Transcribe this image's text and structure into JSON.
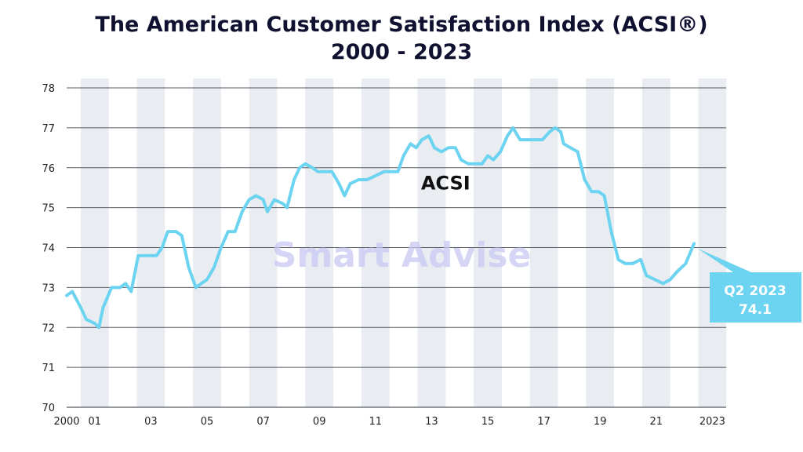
{
  "chart_data": {
    "type": "line",
    "title": "The American Customer Satisfaction Index (ACSI®)",
    "subtitle": "2000 - 2023",
    "series": [
      {
        "name": "ACSI",
        "color": "#6cd3f0",
        "points": [
          [
            2000.0,
            72.8
          ],
          [
            2000.2,
            72.9
          ],
          [
            2000.5,
            72.5
          ],
          [
            2000.7,
            72.2
          ],
          [
            2001.0,
            72.1
          ],
          [
            2001.15,
            72.0
          ],
          [
            2001.3,
            72.5
          ],
          [
            2001.6,
            73.0
          ],
          [
            2001.9,
            73.0
          ],
          [
            2002.1,
            73.1
          ],
          [
            2002.3,
            72.9
          ],
          [
            2002.55,
            73.8
          ],
          [
            2002.9,
            73.8
          ],
          [
            2003.2,
            73.8
          ],
          [
            2003.4,
            74.0
          ],
          [
            2003.6,
            74.4
          ],
          [
            2003.9,
            74.4
          ],
          [
            2004.1,
            74.3
          ],
          [
            2004.35,
            73.5
          ],
          [
            2004.6,
            73.0
          ],
          [
            2004.8,
            73.1
          ],
          [
            2005.0,
            73.2
          ],
          [
            2005.25,
            73.5
          ],
          [
            2005.5,
            74.0
          ],
          [
            2005.75,
            74.4
          ],
          [
            2006.0,
            74.4
          ],
          [
            2006.25,
            74.9
          ],
          [
            2006.5,
            75.2
          ],
          [
            2006.75,
            75.3
          ],
          [
            2007.0,
            75.2
          ],
          [
            2007.15,
            74.9
          ],
          [
            2007.4,
            75.2
          ],
          [
            2007.7,
            75.1
          ],
          [
            2007.85,
            75.0
          ],
          [
            2008.1,
            75.7
          ],
          [
            2008.3,
            76.0
          ],
          [
            2008.5,
            76.1
          ],
          [
            2008.75,
            76.0
          ],
          [
            2008.95,
            75.9
          ],
          [
            2009.2,
            75.9
          ],
          [
            2009.45,
            75.9
          ],
          [
            2009.7,
            75.6
          ],
          [
            2009.9,
            75.3
          ],
          [
            2010.1,
            75.6
          ],
          [
            2010.4,
            75.7
          ],
          [
            2010.7,
            75.7
          ],
          [
            2011.0,
            75.8
          ],
          [
            2011.3,
            75.9
          ],
          [
            2011.55,
            75.9
          ],
          [
            2011.8,
            75.9
          ],
          [
            2012.0,
            76.3
          ],
          [
            2012.25,
            76.6
          ],
          [
            2012.45,
            76.5
          ],
          [
            2012.65,
            76.7
          ],
          [
            2012.9,
            76.8
          ],
          [
            2013.1,
            76.5
          ],
          [
            2013.35,
            76.4
          ],
          [
            2013.6,
            76.5
          ],
          [
            2013.85,
            76.5
          ],
          [
            2014.05,
            76.2
          ],
          [
            2014.3,
            76.1
          ],
          [
            2014.55,
            76.1
          ],
          [
            2014.8,
            76.1
          ],
          [
            2015.0,
            76.3
          ],
          [
            2015.2,
            76.2
          ],
          [
            2015.45,
            76.4
          ],
          [
            2015.7,
            76.8
          ],
          [
            2015.9,
            77.0
          ],
          [
            2016.15,
            76.7
          ],
          [
            2016.4,
            76.7
          ],
          [
            2016.7,
            76.7
          ],
          [
            2016.95,
            76.7
          ],
          [
            2017.2,
            76.9
          ],
          [
            2017.4,
            77.0
          ],
          [
            2017.6,
            76.9
          ],
          [
            2017.7,
            76.6
          ],
          [
            2017.95,
            76.5
          ],
          [
            2018.2,
            76.4
          ],
          [
            2018.45,
            75.7
          ],
          [
            2018.7,
            75.4
          ],
          [
            2018.95,
            75.4
          ],
          [
            2019.15,
            75.3
          ],
          [
            2019.4,
            74.4
          ],
          [
            2019.65,
            73.7
          ],
          [
            2019.9,
            73.6
          ],
          [
            2020.15,
            73.6
          ],
          [
            2020.45,
            73.7
          ],
          [
            2020.65,
            73.3
          ],
          [
            2020.95,
            73.2
          ],
          [
            2021.25,
            73.1
          ],
          [
            2021.5,
            73.2
          ],
          [
            2021.75,
            73.4
          ],
          [
            2022.05,
            73.6
          ],
          [
            2022.35,
            74.1
          ]
        ]
      }
    ],
    "x_tick_labels": [
      {
        "x": 2000,
        "label": "2000"
      },
      {
        "x": 2001,
        "label": "01"
      },
      {
        "x": 2003,
        "label": "03"
      },
      {
        "x": 2005,
        "label": "05"
      },
      {
        "x": 2007,
        "label": "07"
      },
      {
        "x": 2009,
        "label": "09"
      },
      {
        "x": 2011,
        "label": "11"
      },
      {
        "x": 2013,
        "label": "13"
      },
      {
        "x": 2015,
        "label": "15"
      },
      {
        "x": 2017,
        "label": "17"
      },
      {
        "x": 2019,
        "label": "19"
      },
      {
        "x": 2021,
        "label": "21"
      },
      {
        "x": 2023,
        "label": "2023"
      }
    ],
    "y_ticks": [
      70,
      71,
      72,
      73,
      74,
      75,
      76,
      77,
      78
    ],
    "ylim": [
      70,
      78
    ],
    "xlim": [
      2000,
      2023.7
    ],
    "grid": true,
    "shaded_bands": [
      2001,
      2003,
      2005,
      2007,
      2009,
      2011,
      2013,
      2015,
      2017,
      2019,
      2021,
      2023
    ],
    "annotations": {
      "series_label": {
        "text": "ACSI",
        "x": 2013.5,
        "y": 75.45
      },
      "callout": {
        "line1": "Q2 2023",
        "line2": "74.1",
        "x": 2022.35,
        "y": 74.1,
        "color": "#6cd3f0"
      },
      "watermark": "Smart Advise"
    },
    "band_color": "#e9edf1",
    "grid_color": "#555a60"
  }
}
